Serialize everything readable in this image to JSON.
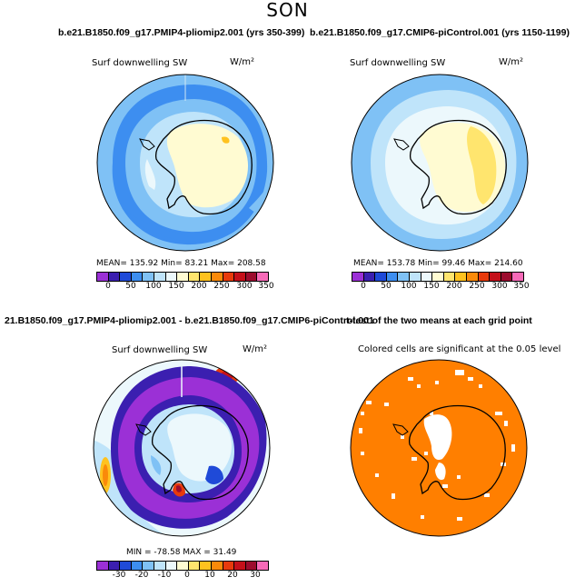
{
  "page": {
    "season": "SON"
  },
  "panels": [
    {
      "title": "b.e21.B1850.f09_g17.PMIP4-pliomip2.001 (yrs 350-399)",
      "label": "Surf downwelling SW",
      "units": "W/m²",
      "stats": "MEAN= 135.92   Min=   83.21   Max= 208.58",
      "colorbar": {
        "colors": [
          "#9b30d6",
          "#3b1fb0",
          "#1f4ad8",
          "#3d8ef0",
          "#7fc1f5",
          "#bfe4fa",
          "#ecf8fc",
          "#fffbd2",
          "#ffe56e",
          "#ffc21f",
          "#fa8a0a",
          "#e83a0c",
          "#c4101a",
          "#9c0c2e",
          "#f76ab8"
        ],
        "ticks": [
          "0",
          "50",
          "100",
          "150",
          "200",
          "250",
          "300",
          "350"
        ]
      },
      "visible_region_colors": {
        "ocean_outer": "#7fc1f5",
        "ocean_mid": "#3d8ef0",
        "near_coast": "#bfe4fa",
        "east_antarctica": "#fffbd2"
      }
    },
    {
      "title": "b.e21.B1850.f09_g17.CMIP6-piControl.001 (yrs 1150-1199)",
      "label": "Surf downwelling SW",
      "units": "W/m²",
      "stats": "MEAN= 153.78   Min=   99.46   Max= 214.60",
      "colorbar": {
        "colors": [
          "#9b30d6",
          "#3b1fb0",
          "#1f4ad8",
          "#3d8ef0",
          "#7fc1f5",
          "#bfe4fa",
          "#ecf8fc",
          "#fffbd2",
          "#ffe56e",
          "#ffc21f",
          "#fa8a0a",
          "#e83a0c",
          "#c4101a",
          "#9c0c2e",
          "#f76ab8"
        ],
        "ticks": [
          "0",
          "50",
          "100",
          "150",
          "200",
          "250",
          "300",
          "350"
        ]
      },
      "visible_region_colors": {
        "ocean_outer": "#7fc1f5",
        "near_coast": "#bfe4fa",
        "east_antarctica": "#fffbd2",
        "interior_high": "#ffe56e"
      }
    },
    {
      "title": "21.B1850.f09_g17.PMIP4-pliomip2.001 - b.e21.B1850.f09_g17.CMIP6-piControl.001",
      "label": "Surf downwelling SW",
      "units": "W/m²",
      "stats": "MIN = -78.58  MAX =   31.49",
      "colorbar": {
        "colors": [
          "#9b30d6",
          "#3b1fb0",
          "#1f4ad8",
          "#3d8ef0",
          "#7fc1f5",
          "#bfe4fa",
          "#ecf8fc",
          "#fffbd2",
          "#ffe56e",
          "#ffc21f",
          "#fa8a0a",
          "#e83a0c",
          "#c4101a",
          "#9c0c2e",
          "#f76ab8"
        ],
        "ticks": [
          "-30",
          "-20",
          "-10",
          "0",
          "10",
          "20",
          "30"
        ]
      },
      "visible_region_colors": {
        "ring": "#9b30d6",
        "inner": "#bfe4fa",
        "outer": "#ecf8fc",
        "positive": "#ffc21f"
      }
    },
    {
      "title": "t-test of the two means at each grid point",
      "label": "Colored cells are significant at the 0.05 level",
      "visible_region_colors": {
        "significant": "#ff7f00"
      }
    }
  ]
}
